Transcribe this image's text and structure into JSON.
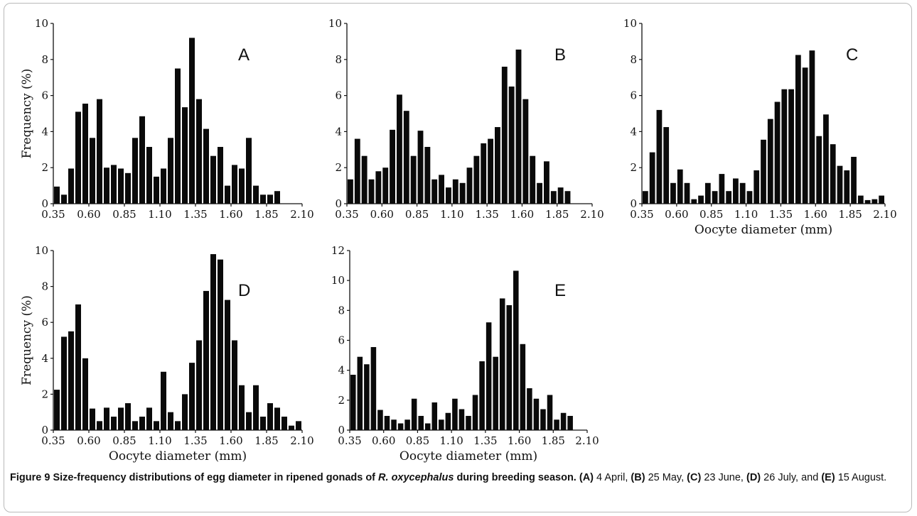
{
  "caption": {
    "label": "Figure 9",
    "title_before_species": "Size-frequency distributions of egg diameter in ripened gonads of",
    "species": "R. oxycephalus",
    "title_after_species": "during breeding season.",
    "items": [
      {
        "tag": "(A)",
        "text": "4 April,"
      },
      {
        "tag": "(B)",
        "text": "25 May,"
      },
      {
        "tag": "(C)",
        "text": "23 June,"
      },
      {
        "tag": "(D)",
        "text": "26 July, and"
      },
      {
        "tag": "(E)",
        "text": "15 August."
      }
    ]
  },
  "chart_data": [
    {
      "type": "bar",
      "panel_label": "A",
      "ylabel": "Frequency (%)",
      "xlabel": "",
      "ylim": [
        0,
        10
      ],
      "yticks": [
        "0",
        "2",
        "4",
        "6",
        "8",
        "10"
      ],
      "xticks": [
        "0.35",
        "0.60",
        "0.85",
        "1.10",
        "1.35",
        "1.60",
        "1.85",
        "2.10"
      ],
      "bin_width_mm": 0.05,
      "first_bin_mm": 0.35,
      "values": [
        0.95,
        0.5,
        1.95,
        5.1,
        5.55,
        3.65,
        5.8,
        2.0,
        2.15,
        1.95,
        1.7,
        3.65,
        4.85,
        3.15,
        1.5,
        1.95,
        3.65,
        7.5,
        5.35,
        9.2,
        5.8,
        4.15,
        2.65,
        3.15,
        1.0,
        2.15,
        1.95,
        3.65,
        1.0,
        0.5,
        0.5,
        0.7
      ]
    },
    {
      "type": "bar",
      "panel_label": "B",
      "ylabel": "",
      "xlabel": "",
      "ylim": [
        0,
        10
      ],
      "yticks": [
        "0",
        "2",
        "4",
        "6",
        "8",
        "10"
      ],
      "xticks": [
        "0.35",
        "0.60",
        "0.85",
        "1.10",
        "1.35",
        "1.60",
        "1.85",
        "2.10"
      ],
      "bin_width_mm": 0.05,
      "first_bin_mm": 0.35,
      "values": [
        1.35,
        3.6,
        2.65,
        1.35,
        1.8,
        2.0,
        4.1,
        6.05,
        5.15,
        2.65,
        4.05,
        3.15,
        1.35,
        1.6,
        0.9,
        1.35,
        1.15,
        2.0,
        2.65,
        3.35,
        3.6,
        4.25,
        7.6,
        6.5,
        8.55,
        5.8,
        2.65,
        1.15,
        2.35,
        0.7,
        0.9,
        0.7
      ]
    },
    {
      "type": "bar",
      "panel_label": "C",
      "ylabel": "",
      "xlabel": "Oocyte diameter (mm)",
      "ylim": [
        0,
        10
      ],
      "yticks": [
        "0",
        "2",
        "4",
        "6",
        "8",
        "10"
      ],
      "xticks": [
        "0.35",
        "0.60",
        "0.85",
        "1.10",
        "1.35",
        "1.60",
        "1.85",
        "2.10"
      ],
      "bin_width_mm": 0.05,
      "first_bin_mm": 0.35,
      "values": [
        0.7,
        2.85,
        5.2,
        4.25,
        1.15,
        1.9,
        1.15,
        0.25,
        0.45,
        1.15,
        0.7,
        1.65,
        0.7,
        1.4,
        1.15,
        0.7,
        1.85,
        3.55,
        4.7,
        5.65,
        6.35,
        6.35,
        8.25,
        7.55,
        8.5,
        3.75,
        4.95,
        3.3,
        2.1,
        1.85,
        2.6,
        0.45,
        0.2,
        0.25,
        0.45
      ]
    },
    {
      "type": "bar",
      "panel_label": "D",
      "ylabel": "Frequency (%)",
      "xlabel": "Oocyte diameter (mm)",
      "ylim": [
        0,
        10
      ],
      "yticks": [
        "0",
        "2",
        "4",
        "6",
        "8",
        "10"
      ],
      "xticks": [
        "0.35",
        "0.60",
        "0.85",
        "1.10",
        "1.35",
        "1.60",
        "1.85",
        "2.10"
      ],
      "bin_width_mm": 0.05,
      "first_bin_mm": 0.35,
      "values": [
        2.25,
        5.2,
        5.5,
        7.0,
        4.0,
        1.2,
        0.5,
        1.25,
        0.75,
        1.25,
        1.5,
        0.5,
        0.75,
        1.25,
        0.5,
        3.25,
        1.0,
        0.5,
        2.0,
        3.75,
        5.0,
        7.75,
        9.8,
        9.5,
        7.25,
        5.0,
        2.5,
        1.0,
        2.5,
        0.75,
        1.5,
        1.25,
        0.75,
        0.25,
        0.5
      ]
    },
    {
      "type": "bar",
      "panel_label": "E",
      "ylabel": "",
      "xlabel": "Oocyte diameter (mm)",
      "ylim": [
        0,
        12
      ],
      "yticks": [
        "0",
        "2",
        "4",
        "6",
        "8",
        "10",
        "12"
      ],
      "xticks": [
        "0.35",
        "0.60",
        "0.85",
        "1.10",
        "1.35",
        "1.60",
        "1.85",
        "2.10"
      ],
      "bin_width_mm": 0.05,
      "first_bin_mm": 0.35,
      "values": [
        3.7,
        4.9,
        4.4,
        5.55,
        1.35,
        0.95,
        0.7,
        0.45,
        0.7,
        2.1,
        0.95,
        0.45,
        1.85,
        0.7,
        1.15,
        2.1,
        1.4,
        0.95,
        2.35,
        4.6,
        7.2,
        4.9,
        8.8,
        8.35,
        10.65,
        5.75,
        2.8,
        2.1,
        1.4,
        2.35,
        0.7,
        1.15,
        0.95
      ]
    }
  ]
}
